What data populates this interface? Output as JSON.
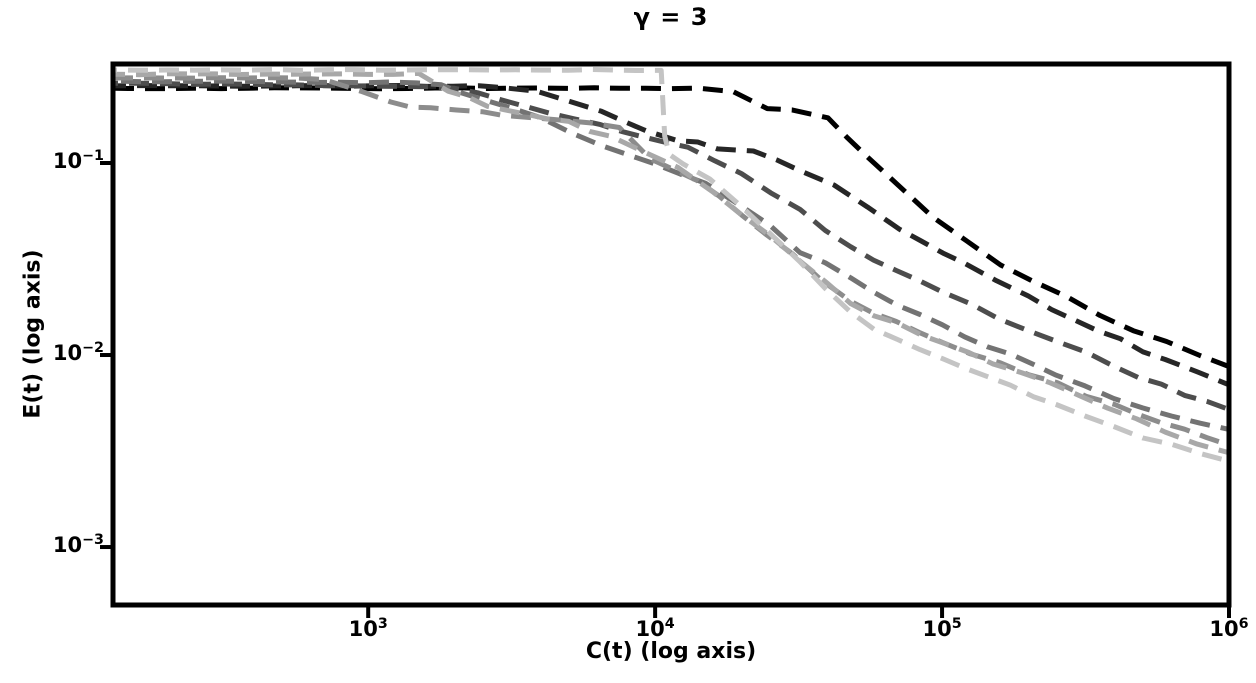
{
  "figure": {
    "background": "#ffffff",
    "frame_color": "#000000"
  },
  "chart_data": {
    "type": "line",
    "title": "γ = 3",
    "xlabel": "C(t) (log axis)",
    "ylabel": "E(t) (log axis)",
    "x_scale": "log",
    "y_scale": "log",
    "xlim": [
      129,
      1000000
    ],
    "ylim": [
      0.000499,
      0.3278
    ],
    "grid": false,
    "legend": null,
    "line_style": {
      "style": "dashed",
      "width": 5,
      "dash_array": [
        20,
        11
      ]
    },
    "x_ticks": [
      {
        "value": 1000,
        "base": "10",
        "exp": "3"
      },
      {
        "value": 10000,
        "base": "10",
        "exp": "4"
      },
      {
        "value": 100000,
        "base": "10",
        "exp": "5"
      },
      {
        "value": 1000000,
        "base": "10",
        "exp": "6"
      }
    ],
    "y_ticks": [
      {
        "value": 0.1,
        "base": "10",
        "exp": "−1"
      },
      {
        "value": 0.01,
        "base": "10",
        "exp": "−2"
      },
      {
        "value": 0.001,
        "base": "10",
        "exp": "−3"
      }
    ],
    "series": [
      {
        "name": "series-1",
        "color": "#000000",
        "x": [
          130,
          5000,
          14000,
          18700,
          24600,
          30000,
          40000,
          55000,
          71000,
          93000,
          122000,
          160000,
          208000,
          272000,
          355000,
          464000,
          606000,
          792000,
          1000000
        ],
        "y": [
          0.245,
          0.245,
          0.245,
          0.234,
          0.194,
          0.186,
          0.176,
          0.107,
          0.075,
          0.052,
          0.0397,
          0.03,
          0.0246,
          0.02,
          0.0158,
          0.0135,
          0.0115,
          0.0098,
          0.0087
        ]
      },
      {
        "name": "series-2",
        "color": "#262626",
        "x": [
          130,
          3000,
          5000,
          6500,
          9300,
          12000,
          16500,
          22000,
          32000,
          42000,
          55000,
          71000,
          120000,
          200000,
          350000,
          600000,
          1000000
        ],
        "y": [
          0.252,
          0.252,
          0.21,
          0.19,
          0.148,
          0.132,
          0.12,
          0.115,
          0.089,
          0.075,
          0.059,
          0.0447,
          0.03,
          0.02,
          0.0133,
          0.0094,
          0.007
        ]
      },
      {
        "name": "series-3",
        "color": "#4d4d4d",
        "x": [
          130,
          2000,
          3500,
          6450,
          9000,
          13000,
          20000,
          32000,
          48000,
          100000,
          200000,
          400000,
          700000,
          1000000
        ],
        "y": [
          0.26,
          0.25,
          0.2,
          0.157,
          0.14,
          0.118,
          0.09,
          0.056,
          0.036,
          0.021,
          0.0135,
          0.0088,
          0.0062,
          0.0052
        ]
      },
      {
        "name": "series-4",
        "color": "#737373",
        "x": [
          130,
          1800,
          2500,
          4000,
          6450,
          10000,
          15000,
          25000,
          32000,
          48000,
          70000,
          120000,
          250000,
          500000,
          1000000
        ],
        "y": [
          0.267,
          0.262,
          0.21,
          0.17,
          0.124,
          0.1,
          0.078,
          0.048,
          0.035,
          0.025,
          0.018,
          0.0125,
          0.0078,
          0.0052,
          0.0041
        ]
      },
      {
        "name": "series-5",
        "color": "#8c8c8c",
        "x": [
          130,
          700,
          950,
          1200,
          1650,
          2500,
          2900,
          4700,
          7500,
          9600,
          14000,
          20000,
          30000,
          48000,
          100000,
          200000,
          400000,
          700000,
          1000000
        ],
        "y": [
          0.277,
          0.277,
          0.237,
          0.205,
          0.193,
          0.186,
          0.178,
          0.167,
          0.157,
          0.108,
          0.08,
          0.055,
          0.033,
          0.019,
          0.0118,
          0.008,
          0.0054,
          0.004,
          0.0034
        ]
      },
      {
        "name": "series-6",
        "color": "#a8a8a8",
        "x": [
          130,
          1500,
          1900,
          2600,
          3500,
          5000,
          7000,
          9000,
          12000,
          16000,
          25000,
          40000,
          48000,
          70000,
          150000,
          300000,
          600000,
          1000000
        ],
        "y": [
          0.29,
          0.29,
          0.24,
          0.2,
          0.185,
          0.162,
          0.135,
          0.115,
          0.093,
          0.072,
          0.042,
          0.024,
          0.0185,
          0.0145,
          0.0092,
          0.0062,
          0.004,
          0.0031
        ]
      },
      {
        "name": "series-7",
        "color": "#c4c4c4",
        "x": [
          130,
          5000,
          10500,
          10800,
          11200,
          12500,
          15500,
          20000,
          26000,
          32000,
          48000,
          70000,
          120000,
          250000,
          500000,
          1000000
        ],
        "y": [
          0.305,
          0.305,
          0.305,
          0.14,
          0.108,
          0.098,
          0.084,
          0.058,
          0.04,
          0.03,
          0.0165,
          0.0118,
          0.0085,
          0.0055,
          0.0038,
          0.0028
        ]
      }
    ]
  }
}
